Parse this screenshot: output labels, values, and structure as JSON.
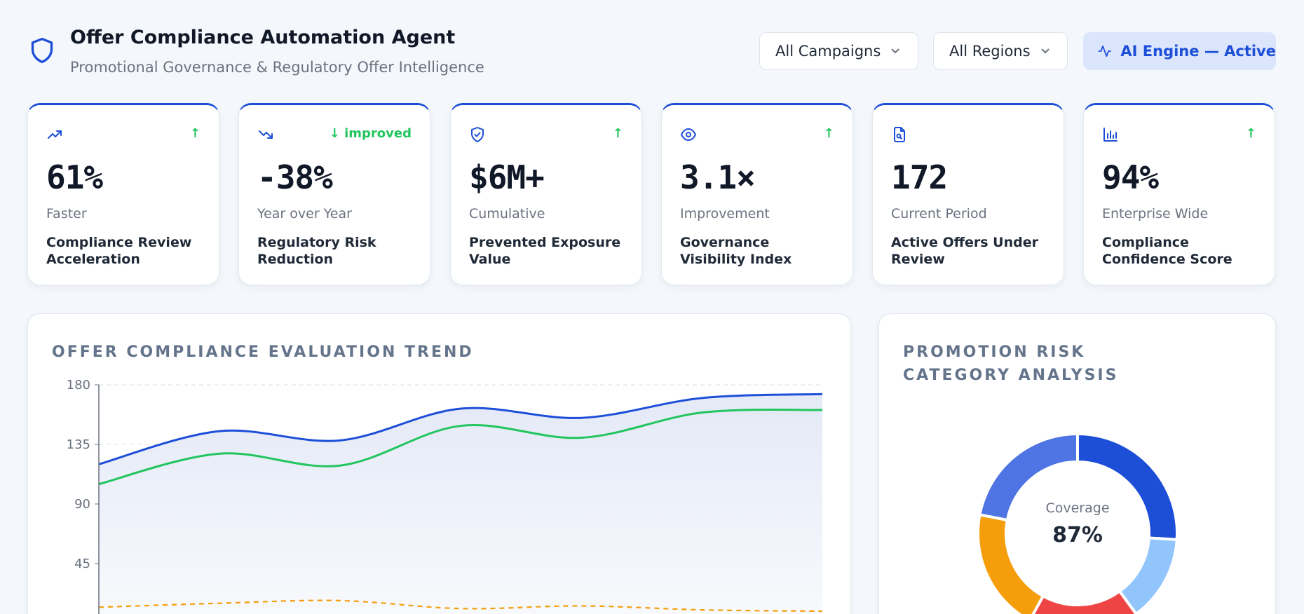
{
  "header": {
    "title": "Offer Compliance Automation Agent",
    "subtitle": "Promotional Governance & Regulatory Offer Intelligence"
  },
  "filters": [
    "All Campaigns",
    "All Regions"
  ],
  "status": "AI Engine — Active",
  "kpis": [
    {
      "value": "61%",
      "trend": "↑",
      "period": "Faster",
      "label": "Compliance Review Acceleration"
    },
    {
      "value": "-38%",
      "trend": "↓ improved",
      "period": "Year over Year",
      "label": "Regulatory Risk Reduction"
    },
    {
      "value": "$6M+",
      "trend": "↑",
      "period": "Cumulative",
      "label": "Prevented Exposure Value"
    },
    {
      "value": "3.1×",
      "trend": "↑",
      "period": "Improvement",
      "label": "Governance Visibility Index"
    },
    {
      "value": "172",
      "period": "Current Period",
      "label": "Active Offers Under Review"
    },
    {
      "value": "94%",
      "trend": "↑",
      "period": "Enterprise Wide",
      "label": "Compliance Confidence Score"
    }
  ],
  "chart_data": [
    {
      "type": "line",
      "title": "OFFER COMPLIANCE EVALUATION TREND",
      "categories": [
        null,
        null,
        null,
        null,
        null,
        null,
        null
      ],
      "series": [
        {
          "color": "#1d4ed8",
          "values": [
            120,
            145,
            138,
            162,
            155,
            170,
            173
          ],
          "area": true
        },
        {
          "color": "#22c55e",
          "values": [
            105,
            128,
            119,
            149,
            140,
            159,
            161
          ]
        },
        {
          "color": "#f59e0b",
          "values": [
            12,
            15,
            17,
            11,
            13,
            10,
            9
          ],
          "dashed": true
        }
      ],
      "ylim": [
        0,
        180
      ],
      "yticks": [
        45,
        90,
        135,
        180
      ],
      "grid": true
    },
    {
      "type": "pie",
      "title": "PROMOTION RISK CATEGORY ANALYSIS",
      "donut": true,
      "values": [
        26,
        14,
        18,
        20,
        22
      ],
      "colors": [
        "#1d4ed8",
        "#93c5fd",
        "#ef4444",
        "#f59e0b",
        "#4f74e3"
      ],
      "center_label": "Coverage",
      "center_value": "87%"
    }
  ]
}
